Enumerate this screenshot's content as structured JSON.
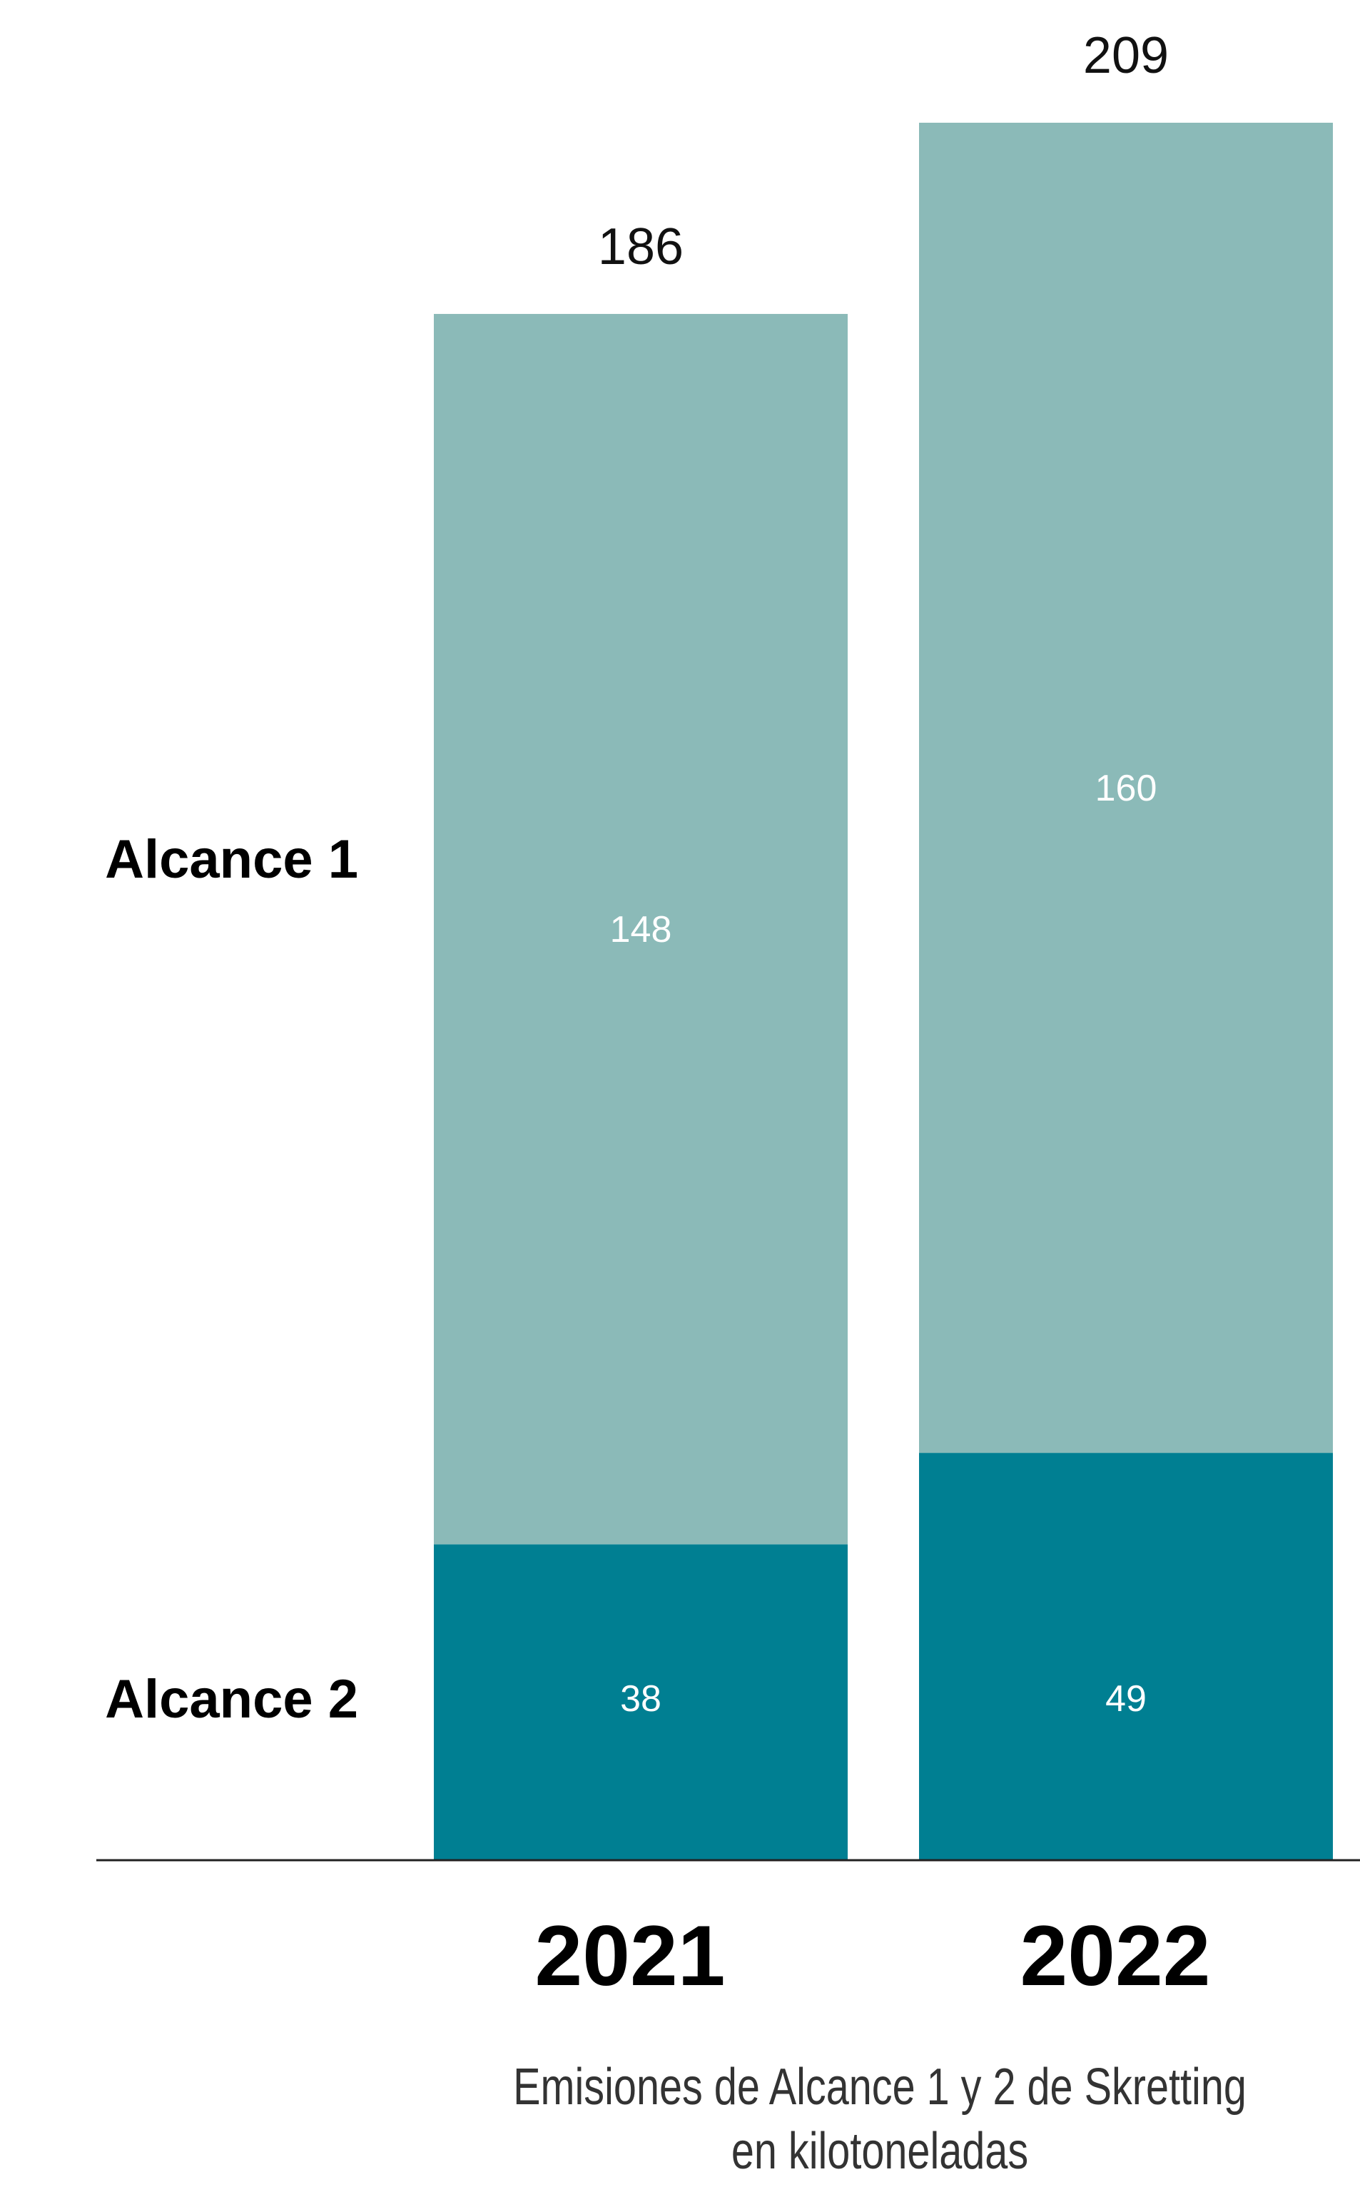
{
  "chart_data": {
    "type": "bar",
    "stacked": true,
    "categories": [
      "2021",
      "2022"
    ],
    "series": [
      {
        "name": "Alcance 2",
        "values": [
          38,
          49
        ],
        "color": "#007F92"
      },
      {
        "name": "Alcance 1",
        "values": [
          148,
          160
        ],
        "color": "#8BBAB8"
      }
    ],
    "totals": [
      186,
      209
    ],
    "ylim": [
      0,
      209
    ],
    "grid": false,
    "legend": "left-labels",
    "caption": "Emisiones de Alcance 1 y 2 de Skretting en kilotoneladas"
  }
}
